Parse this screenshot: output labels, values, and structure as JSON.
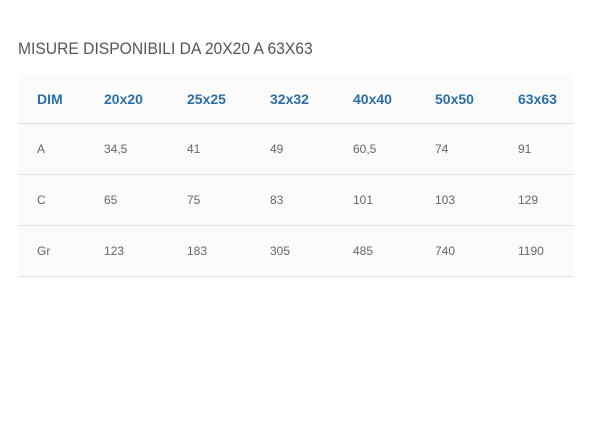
{
  "title": "MISURE DISPONIBILI DA 20X20 A 63X63",
  "table": {
    "headers": [
      "DIM",
      "20x20",
      "25x25",
      "32x32",
      "40x40",
      "50x50",
      "63x63"
    ],
    "rows": [
      [
        "A",
        "34,5",
        "41",
        "49",
        "60,5",
        "74",
        "91"
      ],
      [
        "C",
        "65",
        "75",
        "83",
        "101",
        "103",
        "129"
      ],
      [
        "Gr",
        "123",
        "183",
        "305",
        "485",
        "740",
        "1190"
      ]
    ]
  },
  "colors": {
    "header_text": "#2b6fa8",
    "body_text": "#666666",
    "title_text": "#555555",
    "table_bg": "#fbfbfb",
    "divider": "#e3e3e3"
  }
}
